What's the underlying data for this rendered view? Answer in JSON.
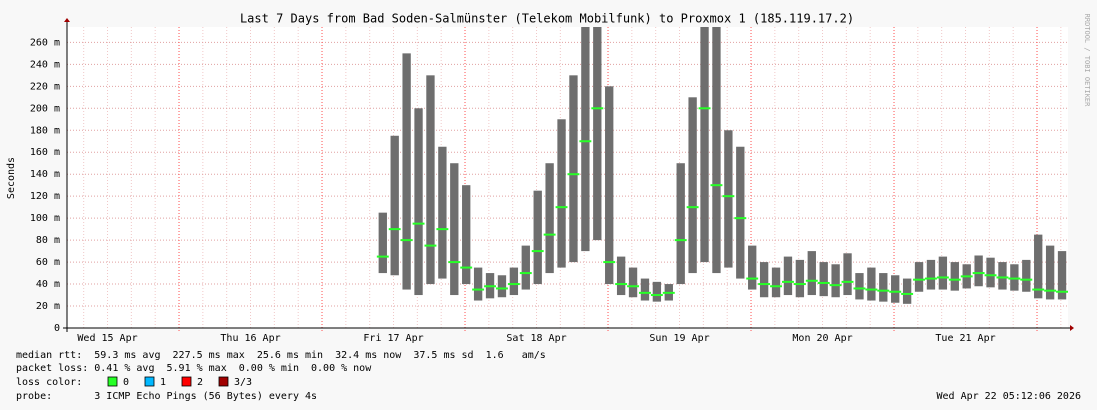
{
  "chart_data": {
    "type": "smoke",
    "title": "Last 7 Days from Bad Soden-Salmünster (Telekom Mobilfunk) to Proxmox 1 (185.119.17.2)",
    "y_label": "Seconds",
    "watermark": "RRDTOOL / TOBI OETIKER",
    "categories": [
      "Wed 15 Apr",
      "Thu 16 Apr",
      "Fri 17 Apr",
      "Sat 18 Apr",
      "Sun 19 Apr",
      "Mon 20 Apr",
      "Tue 21 Apr"
    ],
    "ylim": [
      0,
      0.274
    ],
    "yticks": [
      0,
      {
        "value": 0.02,
        "label": "20 m"
      },
      {
        "value": 0.04,
        "label": "40 m"
      },
      {
        "value": 0.06,
        "label": "60 m"
      },
      {
        "value": 0.08,
        "label": "80 m"
      },
      {
        "value": 0.1,
        "label": "100 m"
      },
      {
        "value": 0.12,
        "label": "120 m"
      },
      {
        "value": 0.14,
        "label": "140 m"
      },
      {
        "value": 0.16,
        "label": "160 m"
      },
      {
        "value": 0.18,
        "label": "180 m"
      },
      {
        "value": 0.2,
        "label": "200 m"
      },
      {
        "value": 0.22,
        "label": "220 m"
      },
      {
        "value": 0.24,
        "label": "240 m"
      },
      {
        "value": 0.26,
        "label": "260 m"
      }
    ],
    "grid": true,
    "smoke_color": "#6e6e6e",
    "median": [
      null,
      null,
      null,
      null,
      null,
      null,
      null,
      null,
      null,
      null,
      null,
      null,
      null,
      null,
      null,
      null,
      null,
      null,
      null,
      null,
      null,
      null,
      null,
      null,
      null,
      null,
      0.065,
      0.09,
      0.08,
      0.095,
      0.075,
      0.09,
      0.06,
      0.055,
      0.035,
      0.038,
      0.036,
      0.04,
      0.05,
      0.07,
      0.085,
      0.11,
      0.14,
      0.17,
      0.2,
      0.06,
      0.04,
      0.038,
      0.032,
      0.03,
      0.032,
      0.08,
      0.11,
      0.2,
      0.13,
      0.12,
      0.1,
      0.045,
      0.04,
      0.038,
      0.042,
      0.04,
      0.043,
      0.041,
      0.039,
      0.042,
      0.036,
      0.035,
      0.034,
      0.033,
      0.031,
      0.044,
      0.045,
      0.046,
      0.044,
      0.047,
      0.05,
      0.048,
      0.046,
      0.045,
      0.044,
      0.035,
      0.034,
      0.033
    ],
    "smoke_min": [
      null,
      null,
      null,
      null,
      null,
      null,
      null,
      null,
      null,
      null,
      null,
      null,
      null,
      null,
      null,
      null,
      null,
      null,
      null,
      null,
      null,
      null,
      null,
      null,
      null,
      null,
      0.05,
      0.048,
      0.035,
      0.03,
      0.04,
      0.045,
      0.03,
      0.04,
      0.025,
      0.027,
      0.028,
      0.03,
      0.035,
      0.04,
      0.05,
      0.055,
      0.06,
      0.07,
      0.08,
      0.04,
      0.03,
      0.028,
      0.025,
      0.024,
      0.025,
      0.04,
      0.05,
      0.06,
      0.05,
      0.055,
      0.045,
      0.035,
      0.028,
      0.028,
      0.03,
      0.028,
      0.03,
      0.029,
      0.028,
      0.03,
      0.026,
      0.025,
      0.024,
      0.023,
      0.022,
      0.033,
      0.035,
      0.035,
      0.034,
      0.036,
      0.038,
      0.037,
      0.035,
      0.034,
      0.033,
      0.027,
      0.026,
      0.026
    ],
    "smoke_max": [
      null,
      null,
      null,
      null,
      null,
      null,
      null,
      null,
      null,
      null,
      null,
      null,
      null,
      null,
      null,
      null,
      null,
      null,
      null,
      null,
      null,
      null,
      null,
      null,
      null,
      null,
      0.105,
      0.175,
      0.25,
      0.2,
      0.23,
      0.165,
      0.15,
      0.13,
      0.055,
      0.05,
      0.048,
      0.055,
      0.075,
      0.125,
      0.15,
      0.19,
      0.23,
      0.274,
      0.274,
      0.22,
      0.065,
      0.055,
      0.045,
      0.042,
      0.04,
      0.15,
      0.21,
      0.274,
      0.274,
      0.18,
      0.165,
      0.075,
      0.06,
      0.055,
      0.065,
      0.062,
      0.07,
      0.06,
      0.058,
      0.068,
      0.05,
      0.055,
      0.05,
      0.048,
      0.045,
      0.06,
      0.062,
      0.065,
      0.06,
      0.058,
      0.066,
      0.064,
      0.06,
      0.058,
      0.062,
      0.085,
      0.075,
      0.07
    ],
    "stats": [
      "median rtt:  59.3 ms avg  227.5 ms max  25.6 ms min  32.4 ms now  37.5 ms sd  1.6   am/s",
      "packet loss: 0.41 % avg  5.91 % max  0.00 % min  0.00 % now"
    ],
    "loss_label": "loss color:",
    "loss_colors": [
      {
        "name": "0",
        "color": "#26ff26"
      },
      {
        "name": "1",
        "color": "#00b8ff"
      },
      {
        "name": "2",
        "color": "#ff0000"
      },
      {
        "name": "3/3",
        "color": "#a00000"
      }
    ],
    "probe": "probe:       3 ICMP Echo Pings (56 Bytes) every 4s",
    "timestamp": "Wed Apr 22 05:12:06 2026"
  }
}
